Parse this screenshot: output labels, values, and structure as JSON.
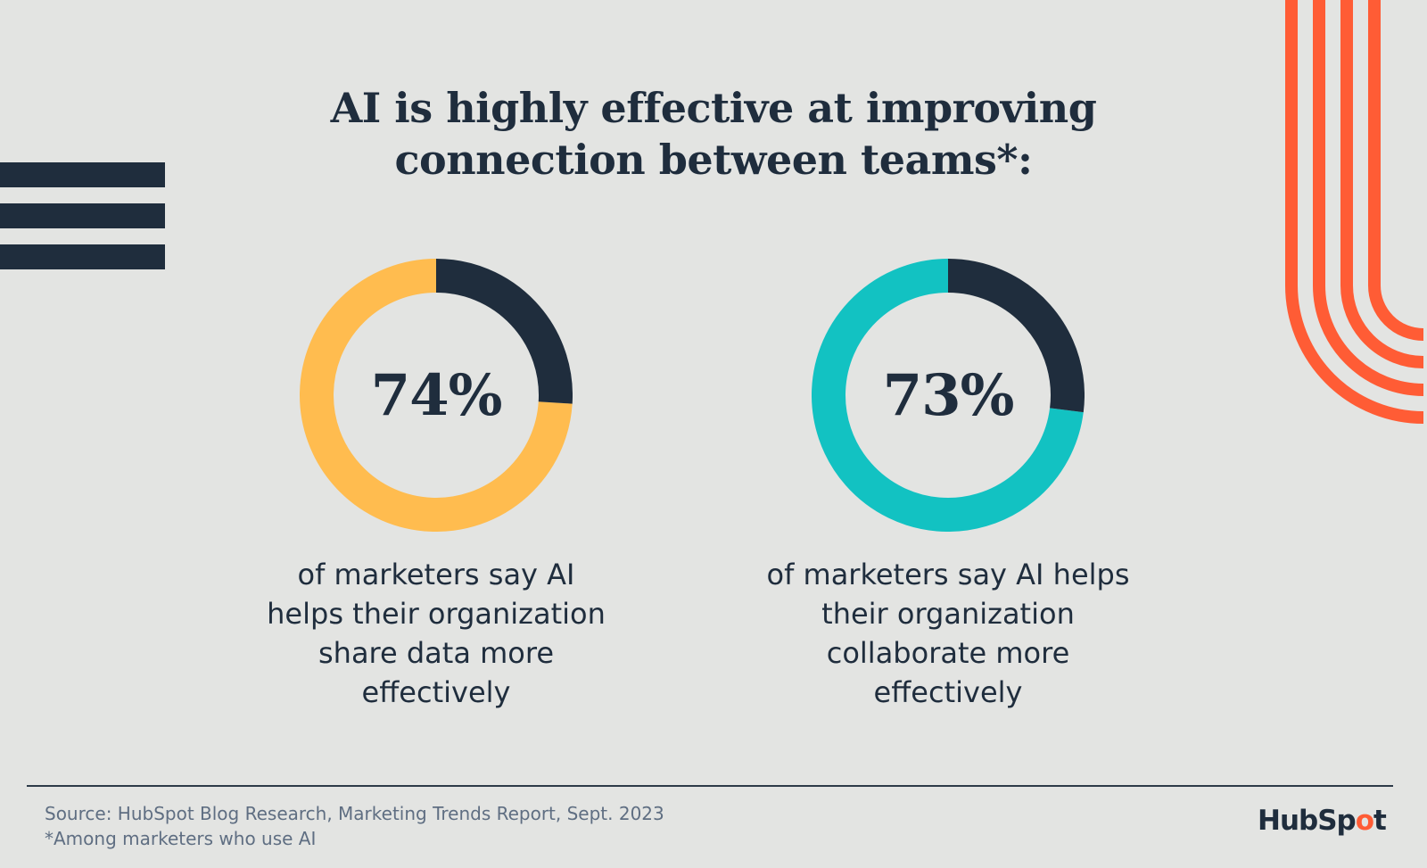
{
  "title": {
    "line1": "AI is highly effective at improving",
    "line2": "connection between teams*:"
  },
  "chart_data": [
    {
      "type": "pie",
      "value": 74,
      "label": "74%",
      "description": [
        "of marketers say AI",
        "helps their organization",
        "share data more",
        "effectively"
      ],
      "colors": {
        "main": "#ffbc4f",
        "remainder": "#1f2d3d"
      }
    },
    {
      "type": "pie",
      "value": 73,
      "label": "73%",
      "description": [
        "of marketers say AI helps",
        "their organization",
        "collaborate more",
        "effectively"
      ],
      "colors": {
        "main": "#12c2c2",
        "remainder": "#1f2d3d"
      }
    }
  ],
  "footer": {
    "source": "Source: HubSpot Blog Research, Marketing Trends Report, Sept. 2023",
    "note": "*Among marketers who use AI",
    "logo_before": "HubSp",
    "logo_o": "o",
    "logo_after": "t"
  },
  "colors": {
    "background": "#e3e4e2",
    "navy": "#1f2d3d",
    "accent_orange": "#ff5c35"
  }
}
